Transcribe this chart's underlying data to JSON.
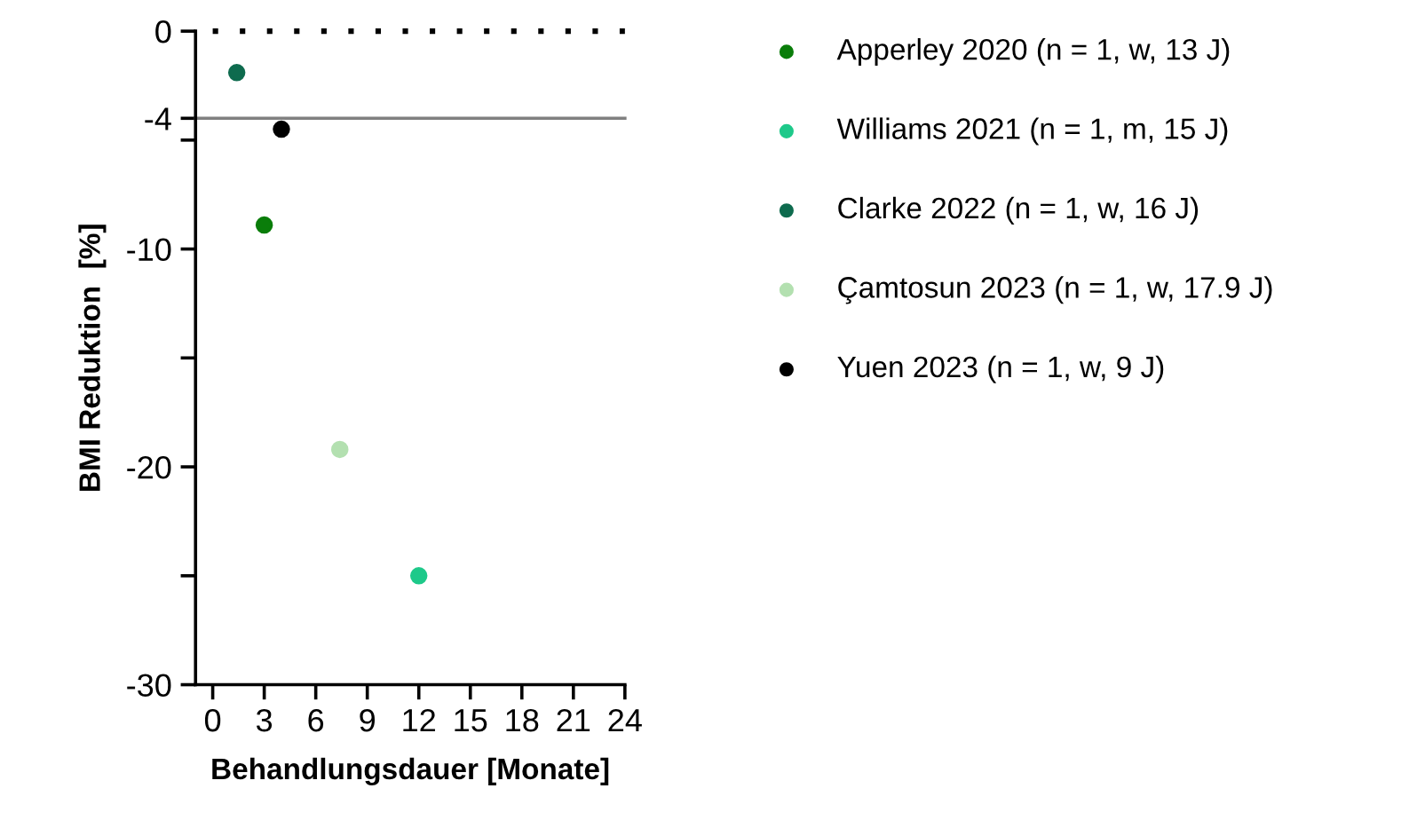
{
  "chart_data": {
    "type": "scatter",
    "xlabel": "Behandlungsdauer [Monate]",
    "ylabel": "BMI Reduktion  [%]",
    "marker": "circle",
    "legend": "right",
    "grid": false,
    "series": [
      {
        "name": "Apperley 2020 (n = 1, w, 13 J)",
        "color": "#0a7d0a",
        "x": [
          3
        ],
        "values": [
          -8.9
        ]
      },
      {
        "name": "Williams 2021 (n = 1, m, 15 J)",
        "color": "#1ec98a",
        "x": [
          12
        ],
        "values": [
          -25.0
        ]
      },
      {
        "name": "Clarke 2022 (n = 1, w, 16 J)",
        "color": "#0e6b4e",
        "x": [
          1.4
        ],
        "values": [
          -1.9
        ]
      },
      {
        "name": "Çamtosun 2023 (n = 1, w, 17.9 J)",
        "color": "#b3e0b0",
        "x": [
          7.4
        ],
        "values": [
          -19.2
        ]
      },
      {
        "name": "Yuen 2023 (n = 1, w, 9 J)",
        "color": "#000000",
        "x": [
          4
        ],
        "values": [
          -4.5
        ]
      }
    ],
    "xlim": [
      -1,
      24
    ],
    "xticks": [
      0,
      3,
      6,
      9,
      12,
      15,
      18,
      21,
      24
    ],
    "ylim": [
      -30,
      0
    ],
    "yticks": [
      0,
      -4,
      {
        "value": -5,
        "label": null
      },
      -10,
      {
        "value": -15,
        "label": null
      },
      -20,
      {
        "value": -25,
        "label": null
      },
      -30
    ],
    "ref_lines": [
      {
        "axis": "y",
        "value": 0,
        "color": "#000000",
        "line_style": "dotted"
      },
      {
        "axis": "y",
        "value": -4,
        "color": "#808080",
        "line_style": "solid"
      }
    ]
  }
}
